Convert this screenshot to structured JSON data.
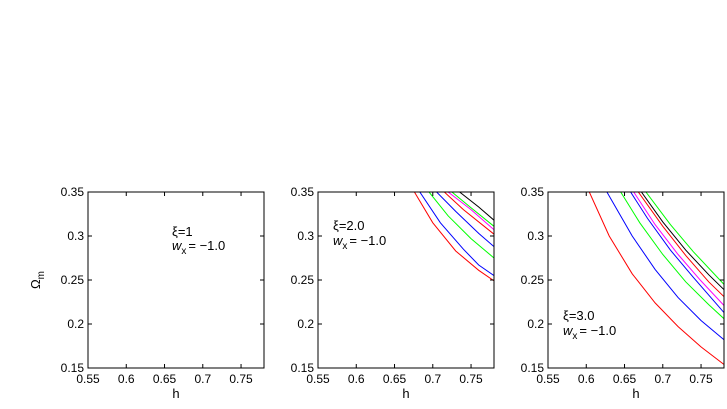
{
  "chart_data": [
    {
      "type": "line",
      "xlabel": "h",
      "ylabel": "Ω",
      "ylabel_sub": "m",
      "xlim": [
        0.55,
        0.78
      ],
      "ylim": [
        0.15,
        0.35
      ],
      "xticks": [
        "0.55",
        "0.6",
        "0.65",
        "0.7",
        "0.75"
      ],
      "yticks": [
        "0.15",
        "0.2",
        "0.25",
        "0.3",
        "0.35"
      ],
      "annotation": {
        "line1": "ξ=1",
        "line2_var": "w",
        "line2_sub": "x",
        "line2_value": "= −1.0"
      },
      "series": []
    },
    {
      "type": "line",
      "xlabel": "h",
      "ylabel": "",
      "xlim": [
        0.55,
        0.78
      ],
      "ylim": [
        0.15,
        0.35
      ],
      "xticks": [
        "0.55",
        "0.6",
        "0.65",
        "0.7",
        "0.75"
      ],
      "yticks": [
        "0.15",
        "0.2",
        "0.25",
        "0.3",
        "0.35"
      ],
      "annotation": {
        "line1": "ξ=2.0",
        "line2_var": "w",
        "line2_sub": "x",
        "line2_value": "= −1.0"
      },
      "series": [
        {
          "color": "#ff0000",
          "points": [
            [
              0.676,
              0.35
            ],
            [
              0.7,
              0.315
            ],
            [
              0.73,
              0.283
            ],
            [
              0.76,
              0.261
            ],
            [
              0.78,
              0.249
            ]
          ]
        },
        {
          "color": "#0000ff",
          "points": [
            [
              0.683,
              0.35
            ],
            [
              0.71,
              0.315
            ],
            [
              0.74,
              0.285
            ],
            [
              0.76,
              0.267
            ],
            [
              0.78,
              0.255
            ]
          ]
        },
        {
          "color": "#00ff00",
          "points": [
            [
              0.695,
              0.35
            ],
            [
              0.72,
              0.323
            ],
            [
              0.75,
              0.297
            ],
            [
              0.78,
              0.275
            ]
          ]
        },
        {
          "color": "#0000ff",
          "points": [
            [
              0.705,
              0.35
            ],
            [
              0.73,
              0.328
            ],
            [
              0.76,
              0.303
            ],
            [
              0.78,
              0.288
            ]
          ]
        },
        {
          "color": "#ff0000",
          "points": [
            [
              0.715,
              0.35
            ],
            [
              0.74,
              0.33
            ],
            [
              0.78,
              0.302
            ]
          ]
        },
        {
          "color": "#ff00ff",
          "points": [
            [
              0.72,
              0.35
            ],
            [
              0.75,
              0.33
            ],
            [
              0.78,
              0.307
            ]
          ]
        },
        {
          "color": "#00ff00",
          "points": [
            [
              0.725,
              0.35
            ],
            [
              0.75,
              0.332
            ],
            [
              0.78,
              0.311
            ]
          ]
        },
        {
          "color": "#000000",
          "points": [
            [
              0.735,
              0.35
            ],
            [
              0.76,
              0.333
            ],
            [
              0.78,
              0.318
            ]
          ]
        }
      ]
    },
    {
      "type": "line",
      "xlabel": "h",
      "ylabel": "",
      "xlim": [
        0.55,
        0.78
      ],
      "ylim": [
        0.15,
        0.35
      ],
      "xticks": [
        "0.55",
        "0.6",
        "0.65",
        "0.7",
        "0.75"
      ],
      "yticks": [
        "0.15",
        "0.2",
        "0.25",
        "0.3",
        "0.35"
      ],
      "annotation": {
        "line1": "ξ=3.0",
        "line2_var": "w",
        "line2_sub": "x",
        "line2_value": "= −1.0"
      },
      "series": [
        {
          "color": "#ff0000",
          "points": [
            [
              0.604,
              0.35
            ],
            [
              0.63,
              0.3
            ],
            [
              0.66,
              0.257
            ],
            [
              0.69,
              0.224
            ],
            [
              0.72,
              0.197
            ],
            [
              0.75,
              0.174
            ],
            [
              0.78,
              0.154
            ]
          ]
        },
        {
          "color": "#0000ff",
          "points": [
            [
              0.627,
              0.35
            ],
            [
              0.66,
              0.3
            ],
            [
              0.69,
              0.262
            ],
            [
              0.72,
              0.23
            ],
            [
              0.75,
              0.204
            ],
            [
              0.78,
              0.182
            ]
          ]
        },
        {
          "color": "#00ff00",
          "points": [
            [
              0.645,
              0.35
            ],
            [
              0.67,
              0.315
            ],
            [
              0.7,
              0.279
            ],
            [
              0.73,
              0.248
            ],
            [
              0.76,
              0.222
            ],
            [
              0.78,
              0.206
            ]
          ]
        },
        {
          "color": "#0000ff",
          "points": [
            [
              0.658,
              0.35
            ],
            [
              0.68,
              0.32
            ],
            [
              0.71,
              0.284
            ],
            [
              0.74,
              0.253
            ],
            [
              0.78,
              0.213
            ]
          ]
        },
        {
          "color": "#ff00ff",
          "points": [
            [
              0.662,
              0.35
            ],
            [
              0.69,
              0.313
            ],
            [
              0.72,
              0.279
            ],
            [
              0.75,
              0.249
            ],
            [
              0.78,
              0.221
            ]
          ]
        },
        {
          "color": "#ff0000",
          "points": [
            [
              0.668,
              0.35
            ],
            [
              0.7,
              0.311
            ],
            [
              0.73,
              0.278
            ],
            [
              0.76,
              0.248
            ],
            [
              0.78,
              0.231
            ]
          ]
        },
        {
          "color": "#000000",
          "points": [
            [
              0.672,
              0.35
            ],
            [
              0.7,
              0.316
            ],
            [
              0.73,
              0.284
            ],
            [
              0.76,
              0.256
            ],
            [
              0.78,
              0.239
            ]
          ]
        },
        {
          "color": "#00ff00",
          "points": [
            [
              0.678,
              0.35
            ],
            [
              0.71,
              0.313
            ],
            [
              0.74,
              0.282
            ],
            [
              0.78,
              0.245
            ]
          ]
        }
      ]
    }
  ]
}
